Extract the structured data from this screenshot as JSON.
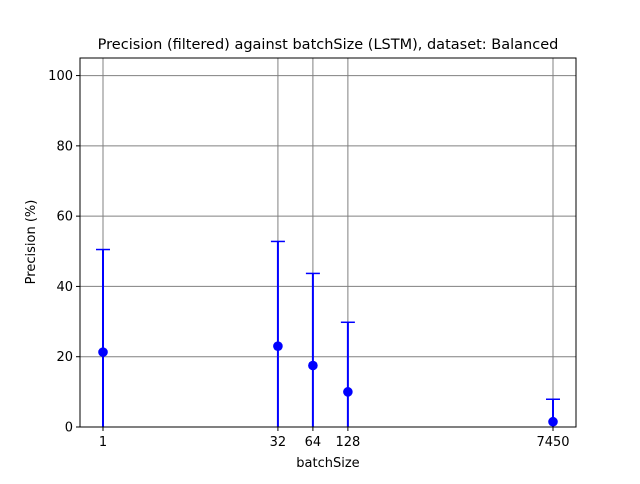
{
  "chart_data": {
    "type": "scatter",
    "title": "Precision (filtered) against batchSize (LSTM), dataset: Balanced",
    "xlabel": "batchSize",
    "ylabel": "Precision (%)",
    "x_scale": "log",
    "x_ticks": [
      "1",
      "32",
      "64",
      "128",
      "7450"
    ],
    "y_ticks": [
      "0",
      "20",
      "40",
      "60",
      "80",
      "100"
    ],
    "ylim": [
      0,
      105
    ],
    "grid": true,
    "marker_color": "#0000ff",
    "grid_color": "#808080",
    "series": [
      {
        "points": [
          {
            "x": 1,
            "y": 21.3,
            "err_low": 0,
            "err_high": 50.5
          },
          {
            "x": 32,
            "y": 23.0,
            "err_low": 0,
            "err_high": 52.8
          },
          {
            "x": 64,
            "y": 17.5,
            "err_low": 0,
            "err_high": 43.7
          },
          {
            "x": 128,
            "y": 10.0,
            "err_low": 0,
            "err_high": 29.8
          },
          {
            "x": 7450,
            "y": 1.5,
            "err_low": 0,
            "err_high": 7.9
          }
        ]
      }
    ]
  }
}
